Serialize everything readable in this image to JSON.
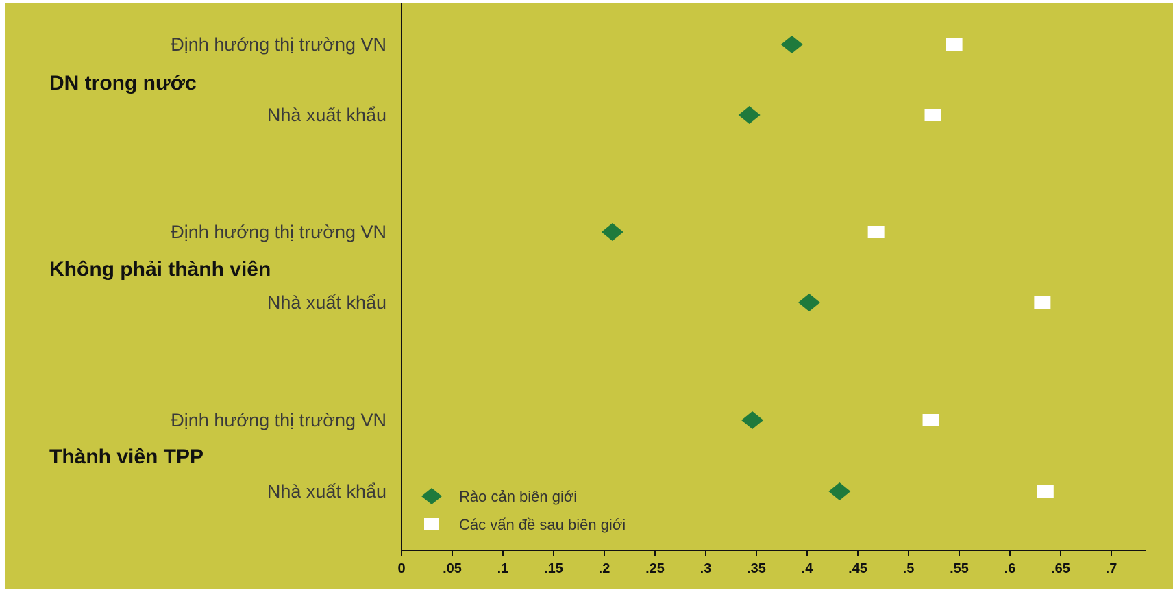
{
  "chart_data": {
    "type": "scatter",
    "title": "",
    "xlabel": "",
    "ylabel": "",
    "xlim": [
      0,
      0.72
    ],
    "x_ticks": [
      "0",
      ".05",
      ".1",
      ".15",
      ".2",
      ".25",
      ".3",
      ".35",
      ".4",
      ".45",
      ".5",
      ".55",
      ".6",
      ".65",
      ".7"
    ],
    "x_tick_values": [
      0,
      0.05,
      0.1,
      0.15,
      0.2,
      0.25,
      0.3,
      0.35,
      0.4,
      0.45,
      0.5,
      0.55,
      0.6,
      0.65,
      0.7
    ],
    "grid": false,
    "legend_position": "bottom-left",
    "groups": [
      {
        "label": "DN trong nước",
        "rows": [
          {
            "label": "Định hướng thị trường VN",
            "values": [
              0.385,
              0.545
            ]
          },
          {
            "label": "Nhà xuất khẩu",
            "values": [
              0.343,
              0.524
            ]
          }
        ]
      },
      {
        "label": "Không phải thành viên",
        "rows": [
          {
            "label": "Định hướng thị trường VN",
            "values": [
              0.208,
              0.468
            ]
          },
          {
            "label": "Nhà xuất khẩu",
            "values": [
              0.402,
              0.632
            ]
          }
        ]
      },
      {
        "label": "Thành viên TPP",
        "rows": [
          {
            "label": "Định hướng thị trường VN",
            "values": [
              0.346,
              0.522
            ]
          },
          {
            "label": "Nhà xuất khẩu",
            "values": [
              0.432,
              0.635
            ]
          }
        ]
      }
    ],
    "series": [
      {
        "name": "Rào cản biên giới",
        "marker": "diamond",
        "color": "#1f7a3c"
      },
      {
        "name": "Các vấn đề sau biên giới",
        "marker": "square",
        "color": "#ffffff"
      }
    ],
    "background_color": "#c9c643"
  }
}
